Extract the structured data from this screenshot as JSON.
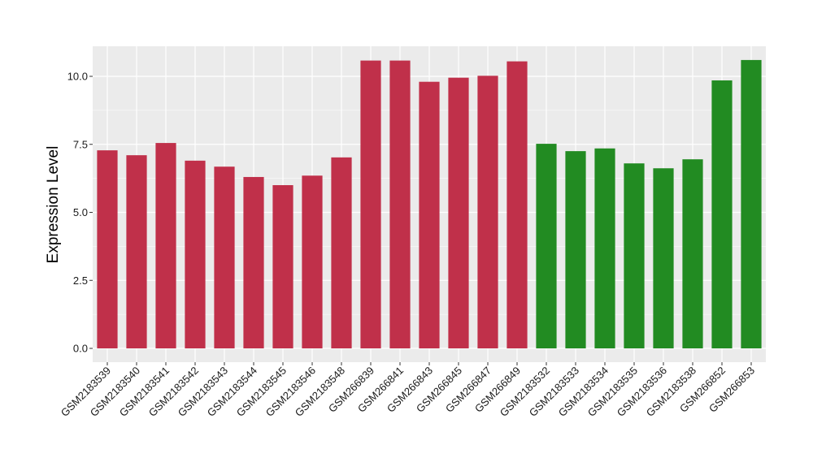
{
  "chart_data": {
    "type": "bar",
    "title": "",
    "xlabel": "",
    "ylabel": "Expression Level",
    "ylim": [
      0,
      10.9
    ],
    "yticks": [
      0.0,
      2.5,
      5.0,
      7.5,
      10.0
    ],
    "ytick_labels": [
      "0.0",
      "2.5",
      "5.0",
      "7.5",
      "10.0"
    ],
    "grid": true,
    "legend": "none",
    "categories": [
      "GSM2183539",
      "GSM2183540",
      "GSM2183541",
      "GSM2183542",
      "GSM2183543",
      "GSM2183544",
      "GSM2183545",
      "GSM2183546",
      "GSM2183548",
      "GSM266839",
      "GSM266841",
      "GSM266843",
      "GSM266845",
      "GSM266847",
      "GSM266849",
      "GSM2183532",
      "GSM2183533",
      "GSM2183534",
      "GSM2183535",
      "GSM2183536",
      "GSM2183538",
      "GSM266852",
      "GSM266853"
    ],
    "values": [
      7.28,
      7.1,
      7.55,
      6.9,
      6.68,
      6.3,
      6.0,
      6.35,
      7.02,
      10.58,
      10.58,
      9.8,
      9.95,
      10.02,
      10.55,
      7.52,
      7.25,
      7.35,
      6.8,
      6.62,
      6.95,
      9.85,
      10.6
    ],
    "bar_colors": [
      "#c0304a",
      "#c0304a",
      "#c0304a",
      "#c0304a",
      "#c0304a",
      "#c0304a",
      "#c0304a",
      "#c0304a",
      "#c0304a",
      "#c0304a",
      "#c0304a",
      "#c0304a",
      "#c0304a",
      "#c0304a",
      "#c0304a",
      "#228b22",
      "#228b22",
      "#228b22",
      "#228b22",
      "#228b22",
      "#228b22",
      "#228b22",
      "#228b22"
    ],
    "panel_background": "#ebebeb",
    "grid_color": "#ffffff"
  }
}
